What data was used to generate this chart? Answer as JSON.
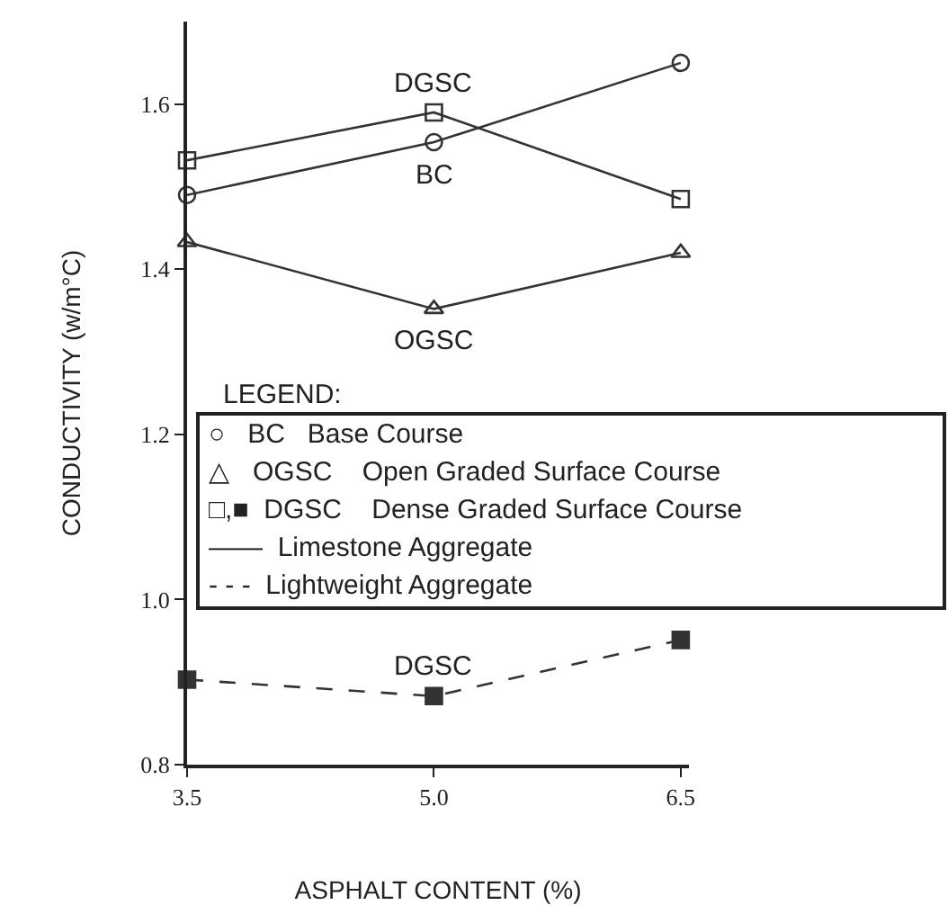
{
  "chart_data": {
    "type": "line",
    "xlabel": "ASPHALT CONTENT (%)",
    "ylabel": "CONDUCTIVITY (w/m°C)",
    "x": [
      3.5,
      5.0,
      6.5
    ],
    "series": [
      {
        "name": "BC",
        "color": "#333333",
        "marker": "circle",
        "line_style": "solid",
        "values": [
          1.49,
          1.554,
          1.65
        ]
      },
      {
        "name": "DGSC",
        "color": "#333333",
        "marker": "square",
        "line_style": "solid",
        "values": [
          1.532,
          1.59,
          1.485
        ]
      },
      {
        "name": "OGSC",
        "color": "#333333",
        "marker": "triangle",
        "line_style": "solid",
        "values": [
          1.433,
          1.352,
          1.42
        ]
      },
      {
        "name": "DGSC",
        "color": "#333333",
        "marker": "square",
        "line_style": "dashed",
        "values": [
          0.903,
          0.883,
          0.951
        ]
      }
    ],
    "xlim": [
      3.5,
      6.55
    ],
    "ylim": [
      0.8,
      1.7
    ],
    "xticks": [
      {
        "value": 3.5,
        "label": "3.5"
      },
      {
        "value": 5.0,
        "label": "5.0"
      },
      {
        "value": 6.5,
        "label": "6.5"
      }
    ],
    "yticks": [
      {
        "value": 0.8,
        "label": "0.8"
      },
      {
        "value": 1.0,
        "label": "1.0"
      },
      {
        "value": 1.2,
        "label": "1.2"
      },
      {
        "value": 1.4,
        "label": "1.4"
      },
      {
        "value": 1.6,
        "label": "1.6"
      }
    ],
    "legend_title": "LEGEND:",
    "annotations": [
      "○   BC   Base Course",
      "△   OGSC    Open Graded Surface Course",
      "□,■  DGSC    Dense Graded Surface Course",
      "——  Limestone Aggregate",
      "- - -  Lightweight Aggregate"
    ],
    "legend": false
  }
}
